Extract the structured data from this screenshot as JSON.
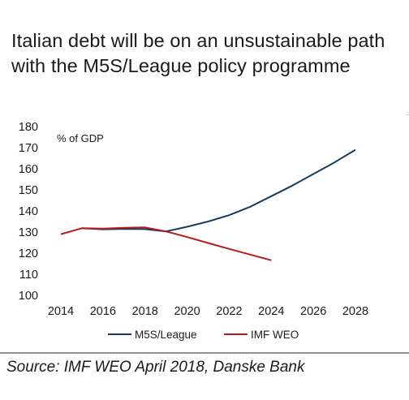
{
  "chart_data": {
    "type": "line",
    "title": "Italian debt will be on an unsustainable path with the M5S/League policy programme",
    "ylabel": "% of GDP",
    "xlabel": "",
    "ylim": [
      100,
      180
    ],
    "yticks": [
      100,
      110,
      120,
      130,
      140,
      150,
      160,
      170,
      180
    ],
    "xlim": [
      2014,
      2028
    ],
    "xticks": [
      2014,
      2016,
      2018,
      2020,
      2022,
      2024,
      2026,
      2028
    ],
    "grid": false,
    "legend": "bottom",
    "series": [
      {
        "name": "M5S/League",
        "color": "#173a63",
        "x": [
          2015,
          2016,
          2017,
          2018,
          2019,
          2020,
          2021,
          2022,
          2023,
          2024,
          2025,
          2026,
          2027,
          2028
        ],
        "y": [
          131.8,
          131.3,
          131.5,
          131.4,
          130.3,
          132.5,
          135.0,
          138.0,
          142.0,
          147.0,
          152.0,
          157.5,
          163.0,
          169.0
        ]
      },
      {
        "name": "IMF WEO",
        "color": "#b71c1c",
        "x": [
          2014,
          2015,
          2016,
          2017,
          2018,
          2019,
          2020,
          2021,
          2022,
          2023,
          2024
        ],
        "y": [
          129.0,
          131.8,
          131.6,
          132.0,
          132.2,
          130.3,
          127.6,
          124.8,
          122.0,
          119.3,
          116.6
        ]
      }
    ]
  },
  "source": "Source: IMF WEO April 2018, Danske Bank"
}
